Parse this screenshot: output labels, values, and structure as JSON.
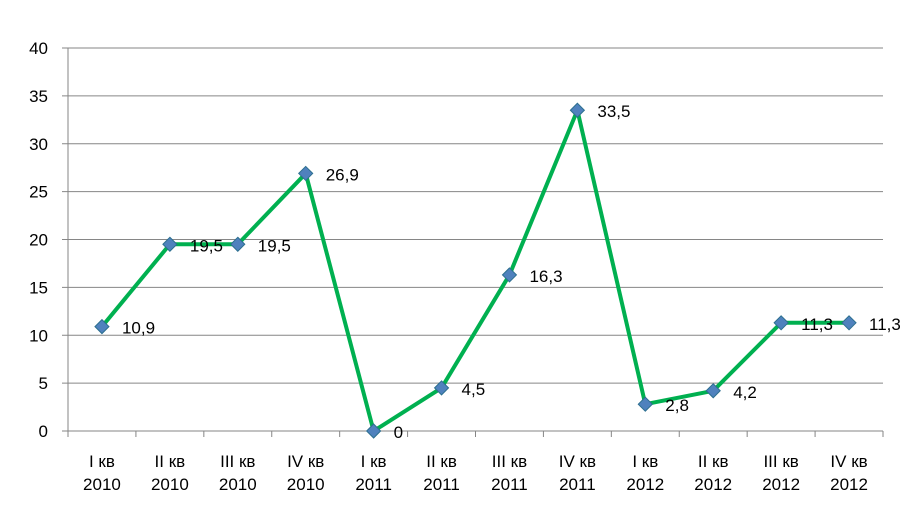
{
  "chart_data": {
    "type": "line",
    "categories": [
      [
        "I кв",
        "2010"
      ],
      [
        "II кв",
        "2010"
      ],
      [
        "III кв",
        "2010"
      ],
      [
        "IV кв",
        "2010"
      ],
      [
        "I кв",
        "2011"
      ],
      [
        "II кв",
        "2011"
      ],
      [
        "III кв",
        "2011"
      ],
      [
        "IV кв",
        "2011"
      ],
      [
        "I кв",
        "2012"
      ],
      [
        "II кв",
        "2012"
      ],
      [
        "III кв",
        "2012"
      ],
      [
        "IV кв",
        "2012"
      ]
    ],
    "series": [
      {
        "values": [
          10.9,
          19.5,
          19.5,
          26.9,
          0,
          4.5,
          16.3,
          33.5,
          2.8,
          4.2,
          11.3,
          11.3
        ],
        "data_labels": [
          "10,9",
          "19,5",
          "19,5",
          "26,9",
          "0",
          "4,5",
          "16,3",
          "33,5",
          "2,8",
          "4,2",
          "11,3",
          "11,3"
        ],
        "line_color": "#00b050",
        "marker": "diamond",
        "marker_color": "#4f81bd"
      }
    ],
    "ylim": [
      0,
      40
    ],
    "yticks": [
      0,
      5,
      10,
      15,
      20,
      25,
      30,
      35,
      40
    ],
    "grid": true,
    "legend": "none"
  }
}
